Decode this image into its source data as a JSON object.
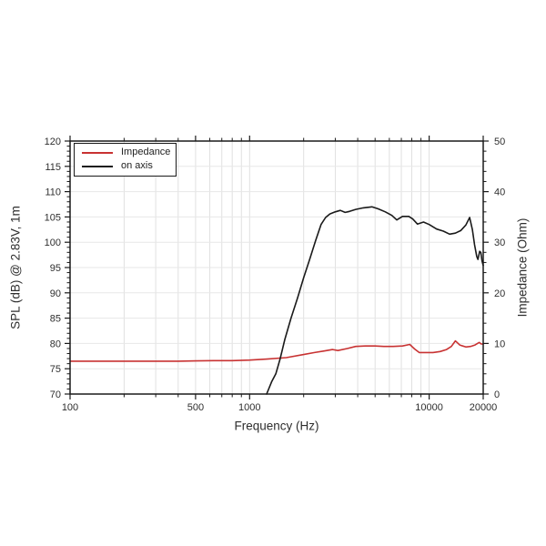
{
  "figure": {
    "background": "#ffffff",
    "frame_color": "#1a1a1a",
    "grid_vertical_color": "#e0e0e0",
    "grid_horizontal_color": "#e7e7e7",
    "tick_color": "#1a1a1a",
    "text_color": "#2e2e2e"
  },
  "chart_data": {
    "type": "line",
    "title": "",
    "xlabel": "Frequency (Hz)",
    "ylabel_left": "SPL (dB) @ 2.83V, 1m",
    "ylabel_right": "Impedance (Ohm)",
    "x_scale": "log",
    "xlim": [
      100,
      20000
    ],
    "ylim_left": [
      70,
      120
    ],
    "ylim_right": [
      0,
      50
    ],
    "x_major_ticks": [
      100,
      500,
      1000,
      10000,
      20000
    ],
    "x_major_tick_labels": [
      "100",
      "500",
      "1000",
      "10000",
      "20000"
    ],
    "x_minor_ticks": [
      200,
      300,
      400,
      600,
      700,
      800,
      900,
      2000,
      3000,
      4000,
      5000,
      6000,
      7000,
      8000,
      9000
    ],
    "y_left_ticks": [
      70,
      75,
      80,
      85,
      90,
      95,
      100,
      105,
      110,
      115,
      120
    ],
    "y_left_minor_step": 1,
    "y_right_ticks": [
      0,
      10,
      20,
      30,
      40,
      50
    ],
    "y_right_minor_step": 2,
    "grid": {
      "vertical": "major+minor",
      "horizontal": "major-only"
    },
    "legend_position": "top-left",
    "series": [
      {
        "name": "Impedance",
        "axis": "right",
        "color": "#c83232",
        "points": [
          [
            100,
            6.5
          ],
          [
            150,
            6.5
          ],
          [
            200,
            6.5
          ],
          [
            300,
            6.5
          ],
          [
            400,
            6.5
          ],
          [
            500,
            6.55
          ],
          [
            630,
            6.6
          ],
          [
            800,
            6.6
          ],
          [
            1000,
            6.7
          ],
          [
            1250,
            6.9
          ],
          [
            1600,
            7.2
          ],
          [
            2000,
            7.8
          ],
          [
            2300,
            8.2
          ],
          [
            2600,
            8.5
          ],
          [
            2900,
            8.8
          ],
          [
            3100,
            8.6
          ],
          [
            3500,
            9.0
          ],
          [
            3900,
            9.4
          ],
          [
            4400,
            9.5
          ],
          [
            5000,
            9.5
          ],
          [
            5600,
            9.4
          ],
          [
            6300,
            9.4
          ],
          [
            7100,
            9.5
          ],
          [
            7800,
            9.8
          ],
          [
            8300,
            8.9
          ],
          [
            8800,
            8.2
          ],
          [
            9500,
            8.2
          ],
          [
            10500,
            8.2
          ],
          [
            11500,
            8.4
          ],
          [
            12500,
            8.8
          ],
          [
            13300,
            9.4
          ],
          [
            14000,
            10.5
          ],
          [
            14800,
            9.7
          ],
          [
            16000,
            9.3
          ],
          [
            17000,
            9.4
          ],
          [
            18000,
            9.7
          ],
          [
            19000,
            10.2
          ],
          [
            19500,
            9.9
          ],
          [
            20000,
            9.9
          ]
        ]
      },
      {
        "name": "on axis",
        "axis": "left",
        "color": "#1a1a1a",
        "points": [
          [
            1244,
            70
          ],
          [
            1330,
            72.5
          ],
          [
            1400,
            74
          ],
          [
            1480,
            77
          ],
          [
            1570,
            80.8
          ],
          [
            1700,
            85
          ],
          [
            1850,
            89
          ],
          [
            2000,
            93
          ],
          [
            2150,
            96.4
          ],
          [
            2330,
            100.3
          ],
          [
            2500,
            103.5
          ],
          [
            2650,
            104.9
          ],
          [
            2800,
            105.6
          ],
          [
            3000,
            106.0
          ],
          [
            3200,
            106.3
          ],
          [
            3400,
            105.9
          ],
          [
            3600,
            106.1
          ],
          [
            3900,
            106.5
          ],
          [
            4300,
            106.8
          ],
          [
            4800,
            107.0
          ],
          [
            5200,
            106.6
          ],
          [
            5700,
            106.0
          ],
          [
            6200,
            105.3
          ],
          [
            6600,
            104.4
          ],
          [
            7100,
            105.1
          ],
          [
            7700,
            105.1
          ],
          [
            8100,
            104.6
          ],
          [
            8600,
            103.6
          ],
          [
            9300,
            104.0
          ],
          [
            10000,
            103.5
          ],
          [
            11000,
            102.6
          ],
          [
            12000,
            102.2
          ],
          [
            13000,
            101.6
          ],
          [
            14000,
            101.8
          ],
          [
            15000,
            102.3
          ],
          [
            16000,
            103.4
          ],
          [
            16800,
            104.9
          ],
          [
            17400,
            102.5
          ],
          [
            17900,
            99.5
          ],
          [
            18400,
            97.2
          ],
          [
            18700,
            96.6
          ],
          [
            19100,
            98.2
          ],
          [
            19400,
            98.0
          ],
          [
            19700,
            96.3
          ],
          [
            20000,
            95.4
          ]
        ]
      }
    ]
  }
}
